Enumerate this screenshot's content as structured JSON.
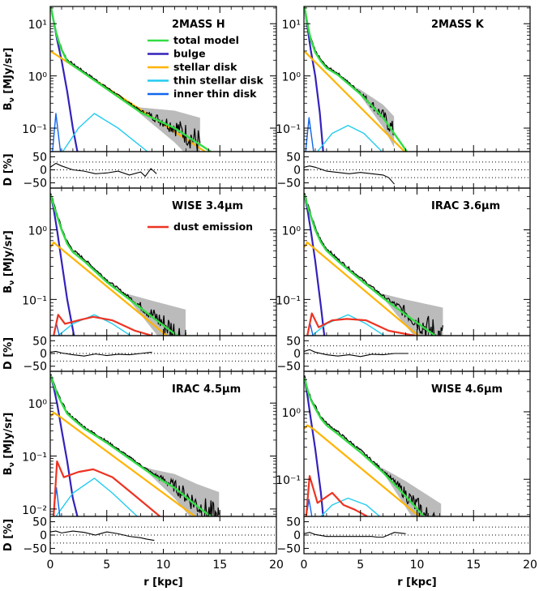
{
  "legend": {
    "total_model": "total model",
    "bulge": "bulge",
    "stellar_disk": "stellar disk",
    "thin_stellar_disk": "thin stellar disk",
    "inner_thin_disk": "inner thin disk",
    "dust_emission": "dust emission"
  },
  "colors": {
    "total_model": "#33dd44",
    "bulge": "#3322bb",
    "stellar_disk": "#ffb400",
    "thin_stellar_disk": "#22ccee",
    "inner_thin_disk": "#1166ee",
    "dust_emission": "#ee3322",
    "data": "#000000",
    "error_band": "#bbbbbb"
  },
  "axes": {
    "xlabel": "r [kpc]",
    "ylabel_main": "B",
    "ylabel_sub": "ν",
    "ylabel_unit": "[MJy/sr]",
    "residual_label": "D [%]",
    "x_ticks": [
      0,
      5,
      10,
      15,
      20
    ],
    "residual_ticks": [
      "50",
      "0",
      "−50"
    ]
  },
  "chart_data": [
    {
      "type": "line",
      "title": "2MASS H",
      "xlim": [
        0,
        20
      ],
      "ylim_log10": [
        -1.45,
        1.33
      ],
      "ytick_labels": [
        "10¹",
        "10⁰",
        "10⁻¹"
      ],
      "ytick_values": [
        1,
        0,
        -1
      ],
      "data_rmax": 13.3,
      "series": [
        {
          "name": "total model",
          "comp": "total",
          "x": [
            0.05,
            0.3,
            0.6,
            1,
            1.5,
            2,
            3,
            5,
            8,
            11,
            14.2
          ],
          "y": [
            1.33,
            1.05,
            0.75,
            0.5,
            0.28,
            0.2,
            0.05,
            -0.25,
            -0.7,
            -1.0,
            -1.45
          ]
        },
        {
          "name": "bulge",
          "comp": "bulge",
          "x": [
            0.05,
            0.3,
            0.6,
            1,
            1.5,
            2,
            2.4
          ],
          "y": [
            1.33,
            1.05,
            0.7,
            0.3,
            -0.3,
            -1.0,
            -1.45
          ]
        },
        {
          "name": "stellar disk",
          "comp": "stellar",
          "x": [
            0.05,
            13.7
          ],
          "y": [
            0.47,
            -1.45
          ]
        },
        {
          "name": "thin stellar disk",
          "comp": "thin",
          "x": [
            1.1,
            2.5,
            3.9,
            6,
            8.6
          ],
          "y": [
            -1.45,
            -1.0,
            -0.72,
            -1.0,
            -1.45
          ]
        },
        {
          "name": "inner thin disk",
          "comp": "inner",
          "x": [
            0.2,
            0.5,
            0.9
          ],
          "y": [
            -1.45,
            -0.72,
            -1.45
          ]
        }
      ],
      "residual": {
        "x": [
          0,
          0.5,
          1,
          2,
          3,
          4,
          5,
          6,
          7,
          8,
          8.4,
          8.9,
          9.4
        ],
        "y": [
          10,
          25,
          15,
          0,
          -5,
          -15,
          -12,
          -5,
          -20,
          -8,
          -25,
          5,
          -15
        ]
      }
    },
    {
      "type": "line",
      "title": "2MASS K",
      "xlim": [
        0,
        20
      ],
      "ylim_log10": [
        -1.45,
        1.33
      ],
      "ytick_labels": [
        "10¹",
        "10⁰",
        "10⁻¹"
      ],
      "ytick_values": [
        1,
        0,
        -1
      ],
      "data_rmax": 8.0,
      "series": [
        {
          "name": "total model",
          "comp": "total",
          "x": [
            0.05,
            0.3,
            0.6,
            1,
            1.5,
            2,
            3,
            5,
            7,
            9.1
          ],
          "y": [
            1.33,
            1.0,
            0.7,
            0.45,
            0.28,
            0.15,
            0.02,
            -0.35,
            -0.8,
            -1.45
          ]
        },
        {
          "name": "bulge",
          "comp": "bulge",
          "x": [
            0.05,
            0.3,
            0.6,
            1,
            1.4,
            1.7
          ],
          "y": [
            1.33,
            0.95,
            0.5,
            0.0,
            -0.7,
            -1.45
          ]
        },
        {
          "name": "stellar disk",
          "comp": "stellar",
          "x": [
            0.05,
            8.9
          ],
          "y": [
            0.47,
            -1.45
          ]
        },
        {
          "name": "thin stellar disk",
          "comp": "thin",
          "x": [
            1.2,
            2.5,
            3.9,
            5.3,
            6.9
          ],
          "y": [
            -1.45,
            -1.1,
            -0.95,
            -1.1,
            -1.45
          ]
        },
        {
          "name": "inner thin disk",
          "comp": "inner",
          "x": [
            0.15,
            0.45,
            0.85
          ],
          "y": [
            -1.45,
            -0.8,
            -1.45
          ]
        }
      ],
      "residual": {
        "x": [
          0,
          0.5,
          1,
          2,
          3,
          4,
          5,
          6,
          7,
          7.5,
          8
        ],
        "y": [
          10,
          15,
          10,
          -5,
          -10,
          -15,
          -10,
          -15,
          -20,
          -30,
          -55
        ]
      }
    },
    {
      "type": "line",
      "title": "WISE 3.4μm",
      "xlim": [
        0,
        20
      ],
      "ylim_log10": [
        -1.52,
        0.6
      ],
      "ytick_labels": [
        "10⁰",
        "10⁻¹"
      ],
      "ytick_values": [
        0,
        -1
      ],
      "data_rmax": 12.0,
      "series": [
        {
          "name": "total model",
          "comp": "total",
          "x": [
            0.05,
            0.3,
            0.6,
            1,
            1.5,
            2,
            3,
            5,
            7,
            9,
            11.2
          ],
          "y": [
            0.5,
            0.35,
            0.2,
            0.0,
            -0.2,
            -0.32,
            -0.45,
            -0.75,
            -1.0,
            -1.25,
            -1.52
          ]
        },
        {
          "name": "bulge",
          "comp": "bulge",
          "x": [
            0.05,
            0.3,
            0.6,
            1,
            1.5,
            2.1
          ],
          "y": [
            0.5,
            0.3,
            0.0,
            -0.45,
            -1.0,
            -1.52
          ]
        },
        {
          "name": "stellar disk",
          "comp": "stellar",
          "x": [
            0.05,
            0.3,
            0.8,
            10.3
          ],
          "y": [
            -0.25,
            -0.18,
            -0.25,
            -1.52
          ]
        },
        {
          "name": "thin stellar disk",
          "comp": "thin",
          "x": [
            0.7,
            2,
            3.9,
            5.5,
            7.1
          ],
          "y": [
            -1.52,
            -1.35,
            -1.22,
            -1.35,
            -1.52
          ]
        },
        {
          "name": "inner thin disk",
          "comp": "inner",
          "x": [
            0.3,
            0.55,
            0.8
          ],
          "y": [
            -1.52,
            -1.35,
            -1.52
          ]
        },
        {
          "name": "dust emission",
          "comp": "dust",
          "x": [
            0.3,
            0.7,
            1.3,
            2.5,
            3.8,
            5.5,
            7.5,
            9.0
          ],
          "y": [
            -1.52,
            -1.22,
            -1.35,
            -1.3,
            -1.25,
            -1.3,
            -1.45,
            -1.52
          ]
        }
      ],
      "residual": {
        "x": [
          0,
          0.5,
          1,
          2,
          3,
          4,
          5,
          6,
          7,
          8,
          9
        ],
        "y": [
          5,
          8,
          2,
          -5,
          -10,
          -2,
          -8,
          -3,
          -5,
          0,
          5
        ]
      }
    },
    {
      "type": "line",
      "title": "IRAC 3.6μm",
      "xlim": [
        0,
        20
      ],
      "ylim_log10": [
        -1.52,
        0.6
      ],
      "ytick_labels": [
        "10⁰",
        "10⁻¹"
      ],
      "ytick_values": [
        0,
        -1
      ],
      "data_rmax": 12.3,
      "series": [
        {
          "name": "total model",
          "comp": "total",
          "x": [
            0.05,
            0.3,
            0.6,
            1,
            1.5,
            2,
            3,
            5,
            7,
            9,
            11.6
          ],
          "y": [
            0.5,
            0.35,
            0.2,
            0.0,
            -0.18,
            -0.3,
            -0.45,
            -0.72,
            -0.98,
            -1.22,
            -1.52
          ]
        },
        {
          "name": "bulge",
          "comp": "bulge",
          "x": [
            0.05,
            0.3,
            0.6,
            1,
            1.5,
            1.8
          ],
          "y": [
            0.5,
            0.3,
            0.0,
            -0.45,
            -1.1,
            -1.52
          ]
        },
        {
          "name": "stellar disk",
          "comp": "stellar",
          "x": [
            0.05,
            0.3,
            0.8,
            10.1
          ],
          "y": [
            -0.25,
            -0.18,
            -0.25,
            -1.52
          ]
        },
        {
          "name": "thin stellar disk",
          "comp": "thin",
          "x": [
            0.7,
            2,
            3.9,
            5.5,
            7.1
          ],
          "y": [
            -1.52,
            -1.35,
            -1.22,
            -1.35,
            -1.52
          ]
        },
        {
          "name": "inner thin disk",
          "comp": "inner",
          "x": [
            0.3,
            0.55,
            0.8
          ],
          "y": [
            -1.52,
            -1.35,
            -1.52
          ]
        },
        {
          "name": "dust emission",
          "comp": "dust",
          "x": [
            0.3,
            0.7,
            1.3,
            2.5,
            3.8,
            5.5,
            7.5,
            9.8
          ],
          "y": [
            -1.52,
            -1.2,
            -1.4,
            -1.3,
            -1.28,
            -1.3,
            -1.45,
            -1.52
          ]
        }
      ],
      "residual": {
        "x": [
          0,
          0.5,
          1,
          2,
          3,
          4,
          5,
          6,
          7,
          8,
          9.2
        ],
        "y": [
          8,
          15,
          5,
          -5,
          -10,
          -5,
          -12,
          -3,
          -5,
          0,
          0
        ]
      }
    },
    {
      "type": "line",
      "title": "IRAC 4.5μm",
      "xlim": [
        0,
        20
      ],
      "ylim_log10": [
        -2.14,
        0.6
      ],
      "ytick_labels": [
        "10⁰",
        "10⁻¹",
        "10⁻²"
      ],
      "ytick_values": [
        0,
        -1,
        -2
      ],
      "data_rmax": 15.0,
      "series": [
        {
          "name": "total model",
          "comp": "total",
          "x": [
            0.05,
            0.3,
            0.6,
            1,
            1.5,
            2,
            3,
            5,
            7,
            9,
            11,
            13,
            14.2
          ],
          "y": [
            0.52,
            0.35,
            0.18,
            0.0,
            -0.2,
            -0.3,
            -0.48,
            -0.75,
            -1.05,
            -1.35,
            -1.6,
            -1.95,
            -2.14
          ]
        },
        {
          "name": "bulge",
          "comp": "bulge",
          "x": [
            0.05,
            0.3,
            0.6,
            1,
            1.5,
            2,
            2.4
          ],
          "y": [
            0.52,
            0.3,
            0.0,
            -0.5,
            -1.1,
            -1.8,
            -2.14
          ]
        },
        {
          "name": "stellar disk",
          "comp": "stellar",
          "x": [
            0.05,
            0.3,
            0.8,
            12.8
          ],
          "y": [
            -0.25,
            -0.18,
            -0.25,
            -2.14
          ]
        },
        {
          "name": "thin stellar disk",
          "comp": "thin",
          "x": [
            0.5,
            2,
            3.9,
            5.5,
            7.7
          ],
          "y": [
            -2.14,
            -1.7,
            -1.42,
            -1.7,
            -2.14
          ]
        },
        {
          "name": "inner thin disk",
          "comp": "inner",
          "x": [
            0.25,
            0.55,
            0.85
          ],
          "y": [
            -2.14,
            -1.6,
            -2.14
          ]
        },
        {
          "name": "dust emission",
          "comp": "dust",
          "x": [
            0.3,
            0.6,
            1.2,
            2.5,
            3.8,
            5.5,
            7.5,
            9.7
          ],
          "y": [
            -2.14,
            -1.1,
            -1.4,
            -1.3,
            -1.25,
            -1.4,
            -1.75,
            -2.14
          ]
        }
      ],
      "residual": {
        "x": [
          0,
          0.5,
          1,
          2,
          3,
          4,
          5,
          6,
          7,
          8,
          8.5,
          9.2
        ],
        "y": [
          12,
          15,
          8,
          15,
          10,
          0,
          12,
          5,
          -5,
          -10,
          -15,
          -20
        ]
      }
    },
    {
      "type": "line",
      "title": "WISE 4.6μm",
      "xlim": [
        0,
        20
      ],
      "ylim_log10": [
        -1.55,
        0.6
      ],
      "ytick_labels": [
        "10⁰",
        "10⁻¹"
      ],
      "ytick_values": [
        0,
        -1
      ],
      "data_rmax": 12.2,
      "series": [
        {
          "name": "total model",
          "comp": "total",
          "x": [
            0.05,
            0.3,
            0.6,
            1,
            1.5,
            2,
            3,
            5,
            7,
            9,
            10.6
          ],
          "y": [
            0.5,
            0.33,
            0.18,
            0.05,
            -0.1,
            -0.2,
            -0.33,
            -0.6,
            -0.9,
            -1.25,
            -1.55
          ]
        },
        {
          "name": "bulge",
          "comp": "bulge",
          "x": [
            0.05,
            0.3,
            0.6,
            1,
            1.5,
            1.7
          ],
          "y": [
            0.5,
            0.25,
            -0.1,
            -0.55,
            -1.2,
            -1.55
          ]
        },
        {
          "name": "stellar disk",
          "comp": "stellar",
          "x": [
            0.05,
            0.3,
            0.8,
            10.2
          ],
          "y": [
            -0.25,
            -0.2,
            -0.25,
            -1.55
          ]
        },
        {
          "name": "thin stellar disk",
          "comp": "thin",
          "x": [
            1.5,
            2.5,
            3.9,
            5.5,
            6.7
          ],
          "y": [
            -1.55,
            -1.38,
            -1.28,
            -1.38,
            -1.55
          ]
        },
        {
          "name": "inner thin disk",
          "comp": "inner",
          "x": [
            0.2,
            0.45,
            0.7
          ],
          "y": [
            -1.55,
            -1.3,
            -1.55
          ]
        },
        {
          "name": "dust emission",
          "comp": "dust",
          "x": [
            0.2,
            0.5,
            1.2,
            2.5,
            3.5,
            4.5,
            5.6
          ],
          "y": [
            -1.55,
            -0.95,
            -1.35,
            -1.2,
            -1.38,
            -1.45,
            -1.55
          ]
        }
      ],
      "residual": {
        "x": [
          0,
          0.5,
          1,
          2,
          3,
          4,
          5,
          6,
          6.5,
          7,
          8,
          9
        ],
        "y": [
          5,
          10,
          2,
          -5,
          -5,
          -5,
          -5,
          -5,
          -8,
          -8,
          10,
          5
        ]
      }
    }
  ]
}
